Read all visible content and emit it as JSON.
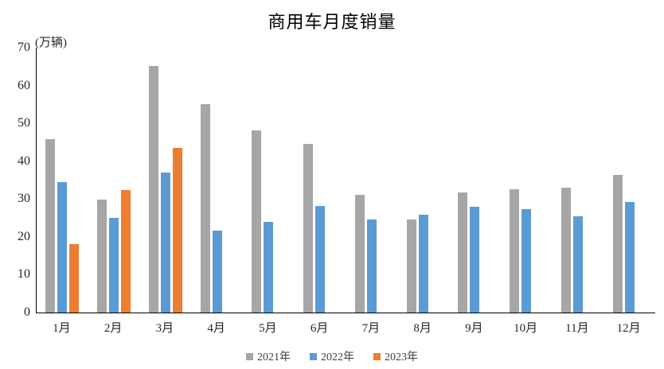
{
  "title": "商用车月度销量",
  "unit_label": "(万辆)",
  "chart_data": {
    "type": "bar",
    "title": "商用车月度销量",
    "ylabel": "(万辆)",
    "xlabel": "",
    "ylim": [
      0,
      70
    ],
    "yticks": [
      0,
      10,
      20,
      30,
      40,
      50,
      60,
      70
    ],
    "grid": false,
    "legend_position": "bottom",
    "categories": [
      "1月",
      "2月",
      "3月",
      "4月",
      "5月",
      "6月",
      "7月",
      "8月",
      "9月",
      "10月",
      "11月",
      "12月"
    ],
    "series": [
      {
        "name": "2021年",
        "color": "#A6A6A6",
        "values": [
          45.9,
          29.8,
          65.2,
          55.0,
          48.1,
          44.6,
          31.2,
          24.7,
          31.7,
          32.6,
          33.1,
          36.4
        ]
      },
      {
        "name": "2022年",
        "color": "#5B9BD5",
        "values": [
          34.5,
          25.0,
          37.0,
          21.7,
          24.0,
          28.2,
          24.6,
          25.9,
          27.9,
          27.3,
          25.4,
          29.2
        ]
      },
      {
        "name": "2023年",
        "color": "#ED7D31",
        "values": [
          18.1,
          32.4,
          43.5,
          null,
          null,
          null,
          null,
          null,
          null,
          null,
          null,
          null
        ]
      }
    ]
  }
}
